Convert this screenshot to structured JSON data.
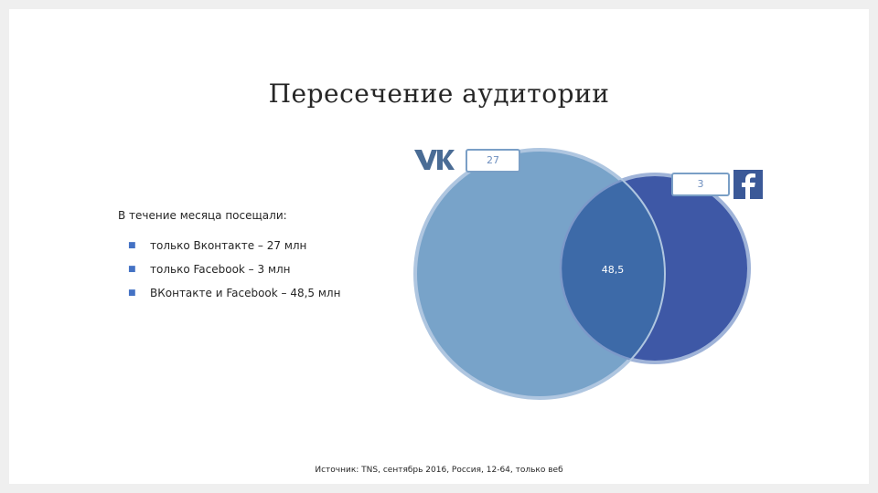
{
  "title": "Пересечение аудитории",
  "subtitle": "В течение месяца посещали:",
  "bullets": [
    {
      "text": "только Вконтакте – 27 млн"
    },
    {
      "text": "только Facebook – 3 млн"
    },
    {
      "text": "ВКонтакте и Facebook – 48,5 млн"
    }
  ],
  "venn": {
    "vk": {
      "value": "27",
      "icon": "vk-logo-icon",
      "color": "#78a3c9"
    },
    "facebook": {
      "value": "3",
      "icon": "facebook-logo-icon",
      "color": "#3e58a6"
    },
    "intersection": {
      "value": "48,5",
      "color": "#3d6aa8"
    }
  },
  "source": "Источник: TNS, сентябрь 2016, Россия, 12-64, только веб"
}
